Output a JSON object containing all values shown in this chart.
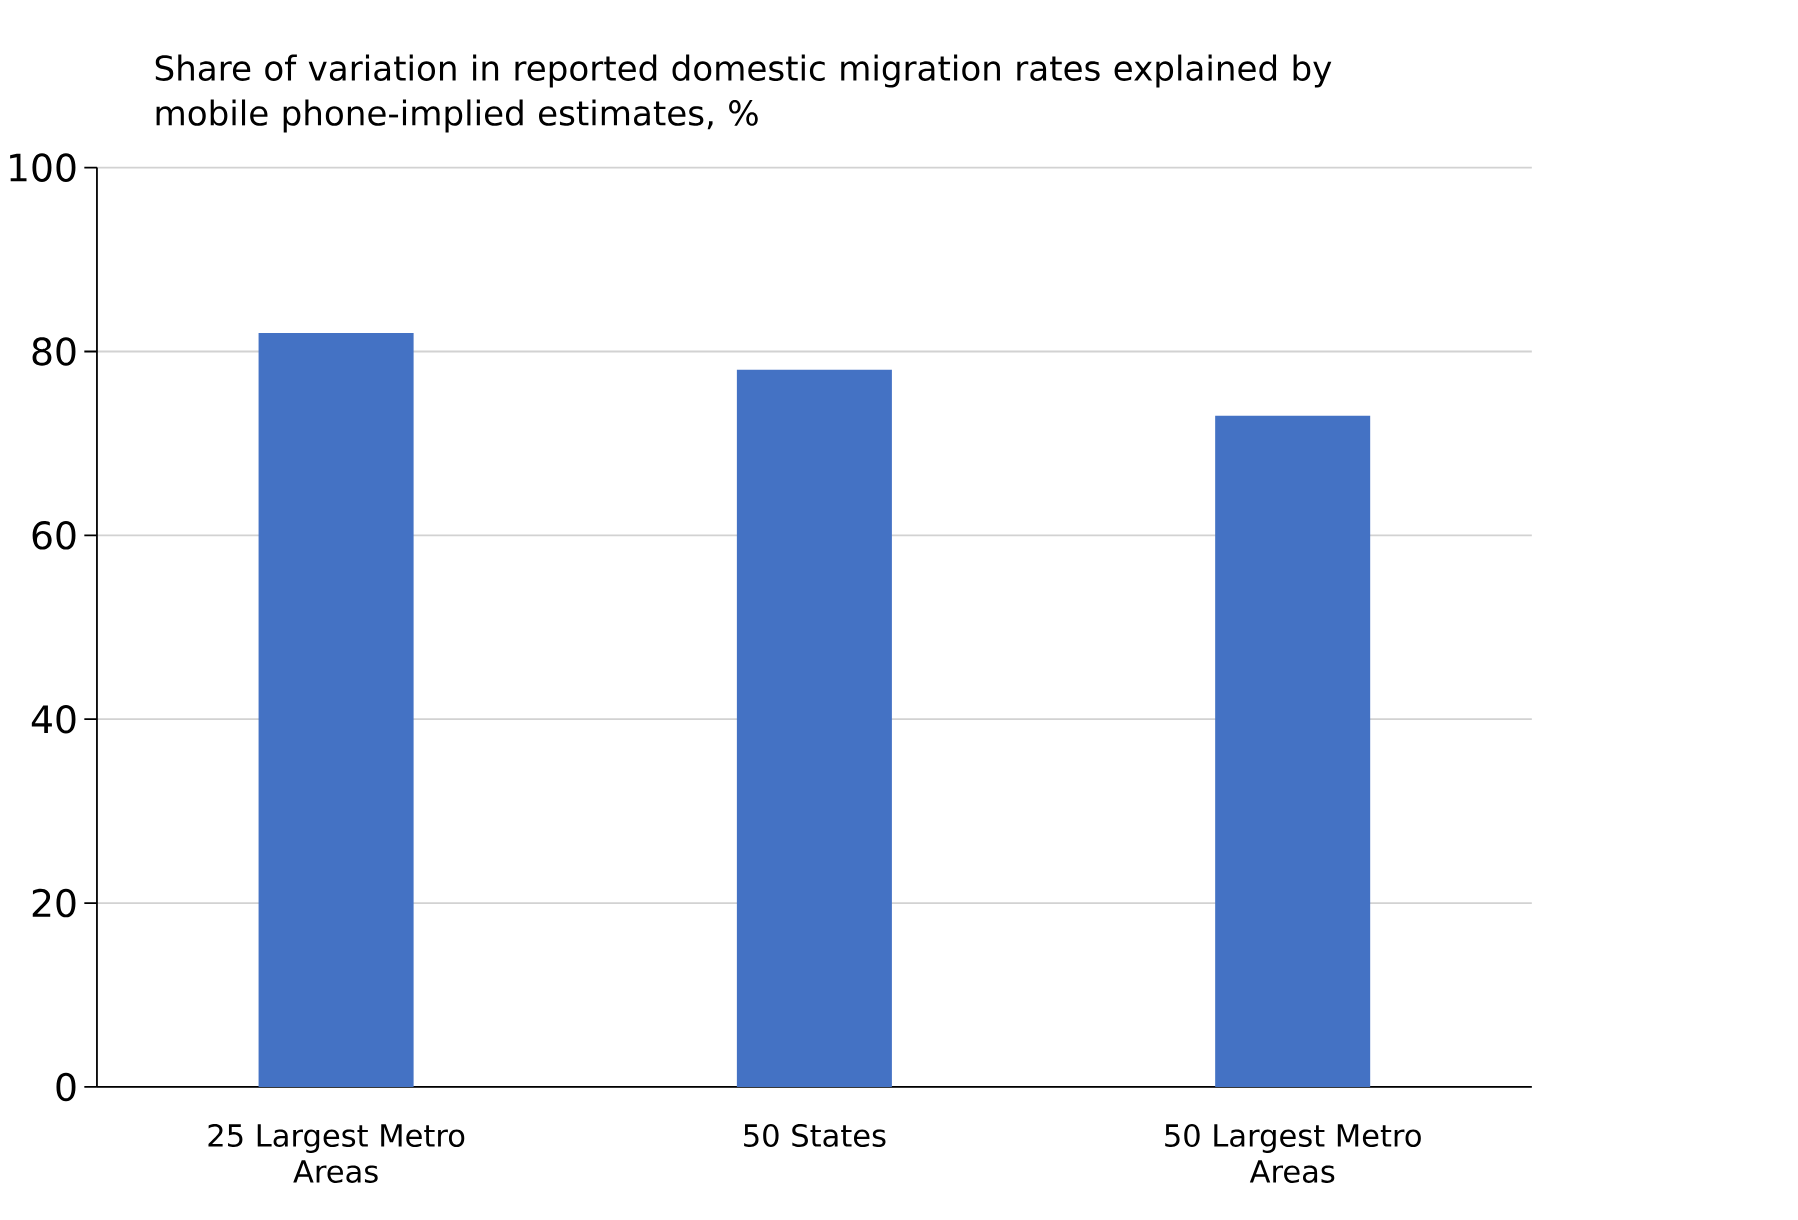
{
  "chart_data": {
    "type": "bar",
    "title": "Share of variation in reported domestic migration rates explained by mobile phone-implied estimates, %",
    "categories": [
      "25 Largest Metro Areas",
      "50 States",
      "50 Largest Metro Areas"
    ],
    "values": [
      82,
      78,
      73
    ],
    "color": "#4472c4",
    "ylim": [
      0,
      100
    ],
    "yticks": [
      0,
      20,
      40,
      60,
      80,
      100
    ],
    "grid": "y"
  }
}
